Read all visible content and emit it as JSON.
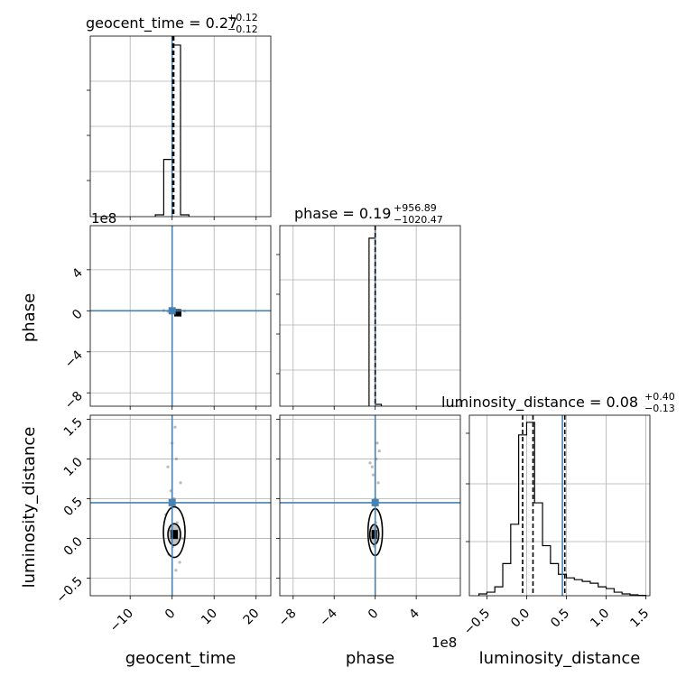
{
  "chart_data": {
    "type": "corner",
    "parameters": [
      "geocent_time",
      "phase",
      "luminosity_distance"
    ],
    "truths": {
      "geocent_time": 0.0,
      "phase": 0.0,
      "luminosity_distance": 0.45
    },
    "grid": true,
    "panels": {
      "geocent_time_hist": {
        "title_main": "geocent_time = 0.27",
        "title_sup": "+0.12",
        "title_sub": "−0.12",
        "xlim": [
          -19.5,
          23.5
        ],
        "edges": [
          -4,
          -2,
          0,
          2,
          4
        ],
        "counts": [
          0.01,
          0.32,
          0.96,
          0.01
        ],
        "median": 0.27,
        "q_low": 0.15,
        "q_high": 0.39
      },
      "phase_hist": {
        "title_main": "phase = 0.19",
        "title_sup": "+956.89",
        "title_sub": "−1020.47",
        "offset_text": "1e8",
        "xlim": [
          -9.3,
          8.3
        ],
        "edges": [
          -0.6,
          0.0,
          0.6
        ],
        "counts": [
          0.94,
          0.01
        ],
        "median": 0.0
      },
      "luminosity_distance_hist": {
        "title_main": "luminosity_distance = 0.08",
        "title_sup": "+0.40",
        "title_sub": "−0.13",
        "xlim": [
          -0.72,
          1.55
        ],
        "edges": [
          -0.6,
          -0.5,
          -0.4,
          -0.3,
          -0.2,
          -0.1,
          0.0,
          0.1,
          0.2,
          0.3,
          0.4,
          0.5,
          0.6,
          0.7,
          0.8,
          0.9,
          1.0,
          1.1,
          1.2,
          1.3,
          1.4,
          1.5
        ],
        "counts": [
          0.01,
          0.02,
          0.05,
          0.18,
          0.4,
          0.9,
          0.97,
          0.52,
          0.28,
          0.18,
          0.12,
          0.1,
          0.09,
          0.08,
          0.07,
          0.05,
          0.04,
          0.02,
          0.01,
          0.005,
          0.002
        ],
        "median": 0.08,
        "q_low": -0.05,
        "q_high": 0.48
      }
    },
    "axes": {
      "geocent_time": {
        "lim": [
          -19.5,
          23.5
        ],
        "ticks": [
          -10,
          0,
          10,
          20
        ],
        "tick_labels": [
          "−10",
          "0",
          "10",
          "20"
        ],
        "label": "geocent_time"
      },
      "phase": {
        "lim": [
          -9.3,
          8.3
        ],
        "ticks": [
          -8,
          -4,
          0,
          4
        ],
        "tick_labels": [
          "−8",
          "−4",
          "0",
          "4"
        ],
        "label": "phase",
        "offset_text": "1e8"
      },
      "luminosity_distance": {
        "lim": [
          -0.72,
          1.55
        ],
        "ticks": [
          -0.5,
          0.0,
          0.5,
          1.0,
          1.5
        ],
        "tick_labels": [
          "−0.5",
          "0.0",
          "0.5",
          "1.0",
          "1.5"
        ],
        "label": "luminosity_distance"
      }
    },
    "scatter": {
      "geocent_time_vs_phase": {
        "x": [
          0,
          1,
          -1,
          2,
          0.5,
          -2,
          3,
          1.5
        ],
        "y": [
          0,
          0.05,
          -0.05,
          0.02,
          -0.1,
          0.03,
          -0.02,
          0.08
        ]
      },
      "geocent_time_vs_luminosity_distance": {
        "x": [
          0,
          1,
          -1,
          2,
          0.5,
          -1.5,
          1.2,
          -0.5,
          2.5,
          0.2,
          -0.8,
          1.8,
          0.7,
          -0.3,
          0.9
        ],
        "y": [
          1.2,
          1.0,
          0.9,
          0.7,
          0.5,
          0.3,
          0.2,
          0.1,
          0.0,
          -0.1,
          -0.2,
          -0.3,
          1.4,
          0.6,
          -0.4
        ]
      },
      "phase_vs_luminosity_distance": {
        "x": [
          0.1,
          -0.3,
          0.4,
          -0.2,
          0.2,
          0.0,
          -0.5,
          0.3,
          0.05,
          -0.1
        ],
        "y": [
          1.0,
          0.9,
          1.1,
          0.8,
          1.2,
          0.5,
          0.95,
          0.7,
          0.2,
          -0.1
        ]
      }
    }
  }
}
